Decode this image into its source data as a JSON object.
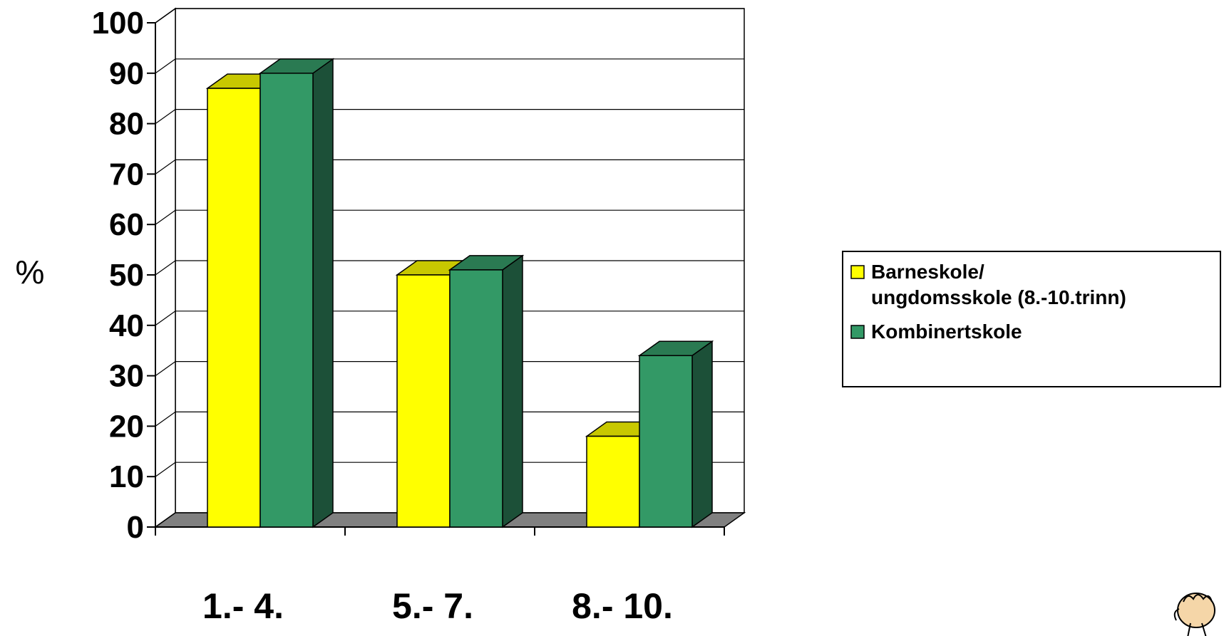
{
  "chart_data": {
    "type": "bar",
    "style": "3d-clustered-column",
    "categories": [
      "1.- 4.",
      "5.- 7.",
      "8.- 10."
    ],
    "series": [
      {
        "name_lines": [
          "Barneskole/",
          "ungdomsskole (8.-10.trinn)"
        ],
        "values": [
          87,
          50,
          18
        ],
        "color": "#ffff00",
        "top_color": "#c8c800",
        "side_color": "#a6a600"
      },
      {
        "name_lines": [
          "Kombinertskole"
        ],
        "values": [
          90,
          51,
          34
        ],
        "color": "#339966",
        "top_color": "#2a7a52",
        "side_color": "#1c5038"
      }
    ],
    "ylabel": "%",
    "ylim": [
      0,
      100
    ],
    "yticks": [
      "0",
      "10",
      "20",
      "30",
      "40",
      "50",
      "60",
      "70",
      "80",
      "90",
      "100"
    ],
    "grid": true,
    "legend_position": "right",
    "floor_color": "#808080"
  },
  "decoration": {
    "icon": "cartoon-hand-icon"
  }
}
